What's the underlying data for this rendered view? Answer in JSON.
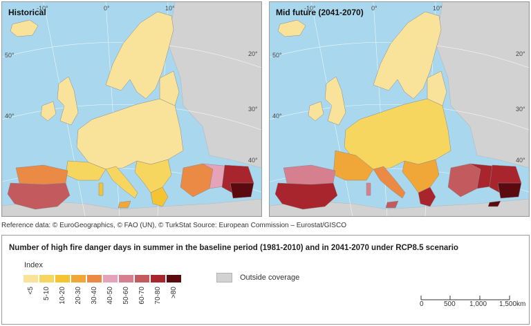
{
  "panels": [
    {
      "title": "Historical"
    },
    {
      "title": "Mid future (2041-2070)"
    }
  ],
  "grid_labels": {
    "lat_40": "40°",
    "lat_50": "50°",
    "lon_0": "0°",
    "lon_10": "10°",
    "lon_20": "20°",
    "lon_30": "30°",
    "lon_40": "40°",
    "lon_m10": "-10°"
  },
  "reference": "Reference data: © EuroGeographics, © FAO (UN), © TurkStat Source: European Commission – Eurostat/GISCO",
  "legend": {
    "title": "Number of high fire danger days in summer in the baseline period (1981-2010) and in 2041-2070 under RCP8.5 scenario",
    "index_label": "Index",
    "classes": [
      {
        "label": "<5",
        "color": "#f9e39b"
      },
      {
        "label": "5-10",
        "color": "#f7d65f"
      },
      {
        "label": "10-20",
        "color": "#f4c432"
      },
      {
        "label": "20-30",
        "color": "#f1a738"
      },
      {
        "label": "30-40",
        "color": "#eb8a45"
      },
      {
        "label": "40-50",
        "color": "#e4a3b8"
      },
      {
        "label": "50-60",
        "color": "#d57f8f"
      },
      {
        "label": "60-70",
        "color": "#c25a5e"
      },
      {
        "label": "70-80",
        "color": "#a8252d"
      },
      {
        "label": ">80",
        "color": "#5b0a10"
      }
    ],
    "outside_label": "Outside coverage",
    "outside_color": "#d2d2d2"
  },
  "scalebar": {
    "ticks": [
      "0",
      "500",
      "1,000",
      "1,500"
    ],
    "unit": "km"
  },
  "colors": {
    "sea": "#a9d7ee",
    "outside": "#d2d2d2"
  }
}
